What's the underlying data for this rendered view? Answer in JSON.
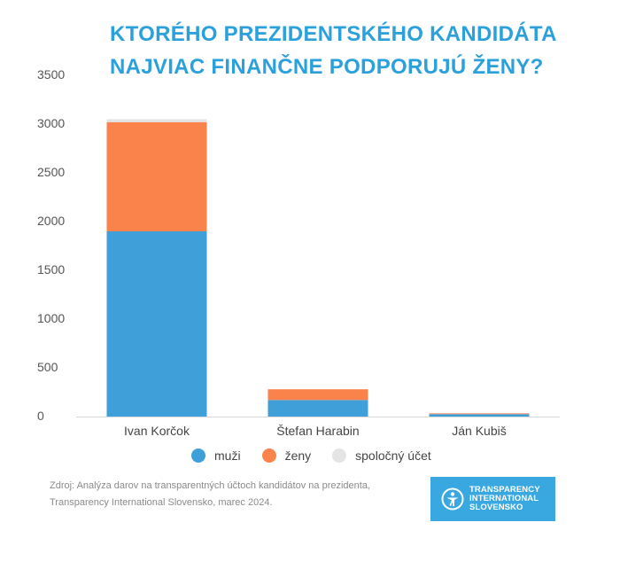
{
  "title": {
    "line1": "KTORÉHO PREZIDENTSKÉHO KANDIDÁTA",
    "line2": "NAJVIAC FINANČNE PODPORUJÚ ŽENY?"
  },
  "chart_data": {
    "type": "bar",
    "stacked": true,
    "categories": [
      "Ivan Korčok",
      "Štefan Harabin",
      "Ján Kubiš"
    ],
    "series": [
      {
        "name": "muži",
        "color": "#3f9fd8",
        "values": [
          1900,
          170,
          25
        ]
      },
      {
        "name": "ženy",
        "color": "#fa834b",
        "values": [
          1120,
          110,
          8
        ]
      },
      {
        "name": "spoločný účet",
        "color": "#e4e4e4",
        "values": [
          30,
          0,
          0
        ]
      }
    ],
    "ylim": [
      0,
      3500
    ],
    "yticks": [
      0,
      500,
      1000,
      1500,
      2000,
      2500,
      3000,
      3500
    ],
    "grid": false,
    "legend_position": "bottom"
  },
  "source": {
    "line1": "Zdroj: Analýza darov na transparentných účtoch kandidátov na prezidenta,",
    "line2": "Transparency International Slovensko, marec 2024."
  },
  "logo": {
    "line1": "TRANSPARENCY",
    "line2": "INTERNATIONAL",
    "line3": "SLOVENSKO",
    "icon": "transparency-international-icon"
  }
}
